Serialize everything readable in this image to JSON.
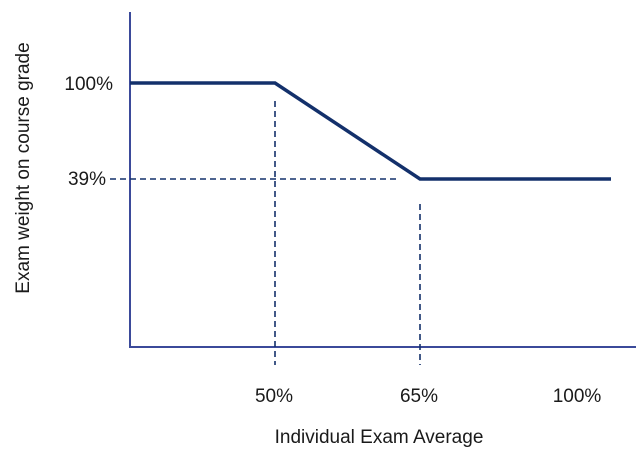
{
  "chart_data": {
    "type": "line",
    "title": "",
    "xlabel": "Individual Exam Average",
    "ylabel": "Exam weight on course grade",
    "x_tick_labels": [
      "50%",
      "65%",
      "100%"
    ],
    "y_tick_labels": [
      "100%",
      "39%"
    ],
    "series": [
      {
        "points": [
          {
            "x": 35,
            "y": 100
          },
          {
            "x": 50,
            "y": 100
          },
          {
            "x": 65,
            "y": 39
          },
          {
            "x": 100,
            "y": 39
          }
        ]
      }
    ],
    "reference_lines": [
      {
        "orientation": "vertical",
        "x": 50
      },
      {
        "orientation": "vertical",
        "x": 65
      },
      {
        "orientation": "horizontal",
        "y": 39
      }
    ],
    "colors": {
      "series": "#13306b",
      "axis": "#3b4a9a",
      "guides": "#13306b"
    },
    "grid": false,
    "legend": "none"
  }
}
